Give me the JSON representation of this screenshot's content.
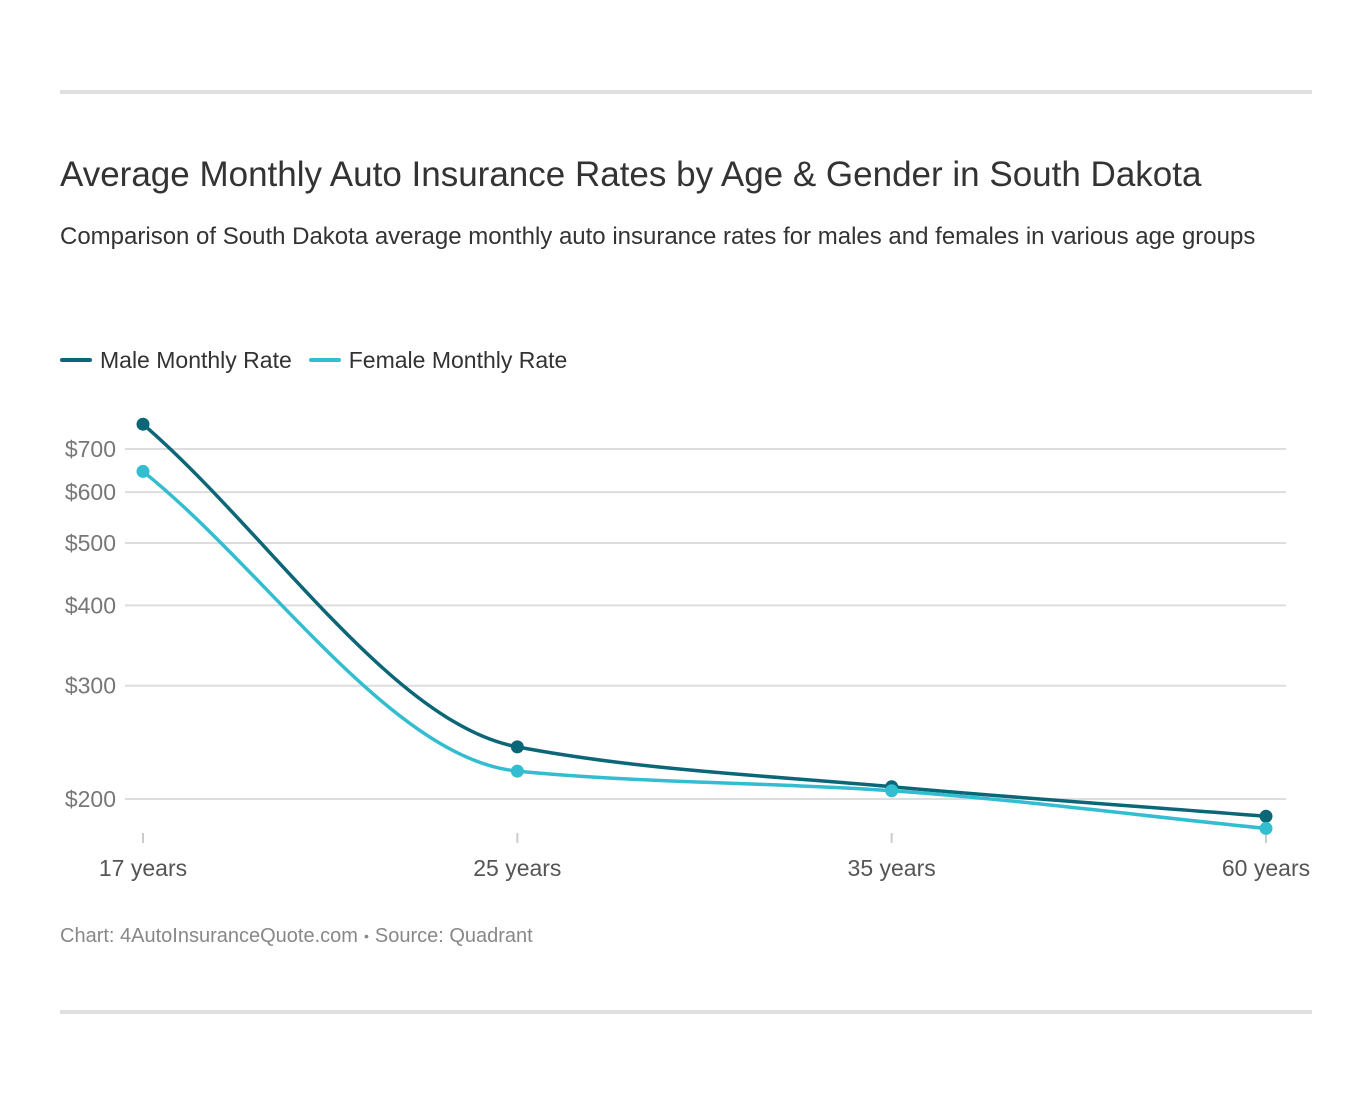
{
  "header": {
    "title": "Average Monthly Auto Insurance Rates by Age & Gender in South Dakota",
    "subtitle": "Comparison of South Dakota average monthly auto insurance rates for males and females in various age groups"
  },
  "legend": {
    "items": [
      {
        "label": "Male Monthly Rate",
        "color": "#0b6677"
      },
      {
        "label": "Female Monthly Rate",
        "color": "#33bdd0"
      }
    ]
  },
  "footer": {
    "chart_credit": "Chart: 4AutoInsuranceQuote.com",
    "separator": "•",
    "source": "Source: Quadrant"
  },
  "chart_data": {
    "type": "line",
    "categories": [
      "17 years",
      "25 years",
      "35 years",
      "60 years"
    ],
    "series": [
      {
        "name": "Male Monthly Rate",
        "color": "#0b6677",
        "values": [
          765,
          241,
          209,
          188
        ]
      },
      {
        "name": "Female Monthly Rate",
        "color": "#33bdd0",
        "values": [
          646,
          221,
          206,
          180
        ]
      }
    ],
    "yscale": "log",
    "yticks": [
      200,
      300,
      400,
      500,
      600,
      700
    ],
    "ytick_labels": [
      "$200",
      "$300",
      "$400",
      "$500",
      "$600",
      "$700"
    ],
    "grid": true,
    "legend_position": "top-left",
    "xlabel": "",
    "ylabel": ""
  }
}
